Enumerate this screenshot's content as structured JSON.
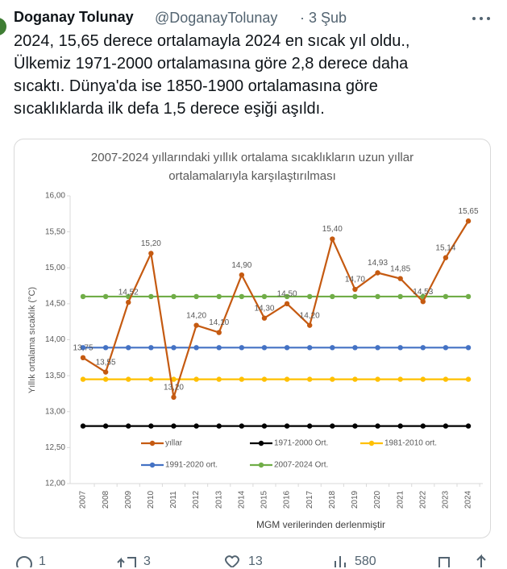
{
  "tweet": {
    "name": "Doganay Tolunay",
    "handle": "@DoganayTolunay",
    "date": "· 3 Şub",
    "lines": [
      "2024, 15,65 derece ortalamayla 2024 en sıcak yıl oldu.,",
      "Ülkemiz 1971-2000 ortalamasına göre 2,8 derece daha",
      "sıcaktı. Dünya'da ise 1850-1900 ortalamasına göre",
      "sıcaklıklarda ilk defa 1,5 derece eşiği aşıldı."
    ],
    "replies": "1",
    "retweets": "3",
    "likes": "13",
    "views": "580"
  },
  "chart_data": {
    "type": "line",
    "title": [
      "2007-2024 yıllarındaki yıllık ortalama sıcaklıkların uzun yıllar",
      "ortalamalarıyla karşılaştırılması"
    ],
    "y_label": "Yıllık ortalama sıcaklık (°C)",
    "caption": "MGM verilerinden derlenmiştir",
    "categories": [
      "2007",
      "2008",
      "2009",
      "2010",
      "2011",
      "2012",
      "2013",
      "2014",
      "2015",
      "2016",
      "2017",
      "2018",
      "2019",
      "2020",
      "2021",
      "2022",
      "2023",
      "2024"
    ],
    "series": [
      {
        "name": "yıllar",
        "color": "#c55a11",
        "values": [
          13.75,
          13.55,
          14.52,
          15.2,
          13.2,
          14.2,
          14.1,
          14.9,
          14.3,
          14.5,
          14.2,
          15.4,
          14.7,
          14.93,
          14.85,
          14.53,
          15.14,
          15.65
        ],
        "value_labels": [
          "13,75",
          "13,55",
          "14,52",
          "15,20",
          "13,20",
          "14,20",
          "14,10",
          "14,90",
          "14,30",
          "14,50",
          "14,20",
          "15,40",
          "14,70",
          "14,93",
          "14,85",
          "14,53",
          "15,14",
          "15,65"
        ]
      },
      {
        "name": "1971-2000 Ort.",
        "color": "#000000",
        "values": [
          12.8,
          12.8,
          12.8,
          12.8,
          12.8,
          12.8,
          12.8,
          12.8,
          12.8,
          12.8,
          12.8,
          12.8,
          12.8,
          12.8,
          12.8,
          12.8,
          12.8,
          12.8
        ]
      },
      {
        "name": "1981-2010 ort.",
        "color": "#ffc000",
        "values": [
          13.45,
          13.45,
          13.45,
          13.45,
          13.45,
          13.45,
          13.45,
          13.45,
          13.45,
          13.45,
          13.45,
          13.45,
          13.45,
          13.45,
          13.45,
          13.45,
          13.45,
          13.45
        ]
      },
      {
        "name": "1991-2020 ort.",
        "color": "#4472c4",
        "values": [
          13.89,
          13.89,
          13.89,
          13.89,
          13.89,
          13.89,
          13.89,
          13.89,
          13.89,
          13.89,
          13.89,
          13.89,
          13.89,
          13.89,
          13.89,
          13.89,
          13.89,
          13.89
        ]
      },
      {
        "name": "2007-2024 Ort.",
        "color": "#70ad47",
        "values": [
          14.6,
          14.6,
          14.6,
          14.6,
          14.6,
          14.6,
          14.6,
          14.6,
          14.6,
          14.6,
          14.6,
          14.6,
          14.6,
          14.6,
          14.6,
          14.6,
          14.6,
          14.6
        ]
      }
    ],
    "ylim": [
      12,
      16
    ],
    "yticks": [
      {
        "value": 12,
        "label": "12,00"
      },
      {
        "value": 12.5,
        "label": "12,50"
      },
      {
        "value": 13,
        "label": "13,00"
      },
      {
        "value": 13.5,
        "label": "13,50"
      },
      {
        "value": 14,
        "label": "14,00"
      },
      {
        "value": 14.5,
        "label": "14,50"
      },
      {
        "value": 15,
        "label": "15,00"
      },
      {
        "value": 15.5,
        "label": "15,50"
      },
      {
        "value": 16,
        "label": "16,00"
      }
    ]
  }
}
